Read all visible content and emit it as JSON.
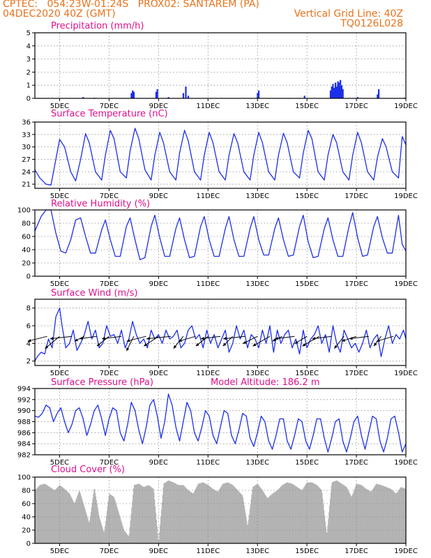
{
  "header": {
    "line1_left": "CPTEC:   054:23W-01:24S   PROX02: SANTAREM (PA)",
    "line2_left": "04DEC2020 40Z (GMT)",
    "line2_right": "Vertical Grid Line: 40Z",
    "line3_right": "TQ0126L028",
    "color": "#e8721b"
  },
  "x_axis": {
    "tick_labels": [
      "5DEC",
      "7DEC",
      "9DEC",
      "11DEC",
      "13DEC",
      "15DEC",
      "17DEC",
      "19DEC"
    ],
    "tick_days": [
      5,
      7,
      9,
      11,
      13,
      15,
      17,
      19
    ],
    "range_days": [
      4,
      19
    ]
  },
  "chart_data": [
    {
      "type": "bar",
      "title": "Precipitation (mm/h)",
      "ylim": [
        0,
        5
      ],
      "yticks": [
        0,
        1,
        2,
        3,
        4,
        5
      ],
      "grid": true,
      "color": "#1c2ee8",
      "x_days": [
        5.95,
        6.4,
        7.9,
        7.95,
        8.0,
        8.9,
        8.95,
        9.4,
        10.0,
        10.1,
        10.2,
        13.0,
        13.05,
        14.9,
        15.95,
        16.0,
        16.05,
        16.1,
        16.15,
        16.2,
        16.25,
        16.3,
        16.35,
        16.4,
        16.45,
        17.05,
        17.85,
        17.9,
        18.95
      ],
      "values": [
        0.1,
        0.05,
        0.4,
        0.6,
        0.5,
        0.5,
        0.7,
        0.1,
        0.4,
        0.9,
        0.2,
        0.4,
        0.6,
        0.2,
        0.6,
        0.9,
        1.1,
        0.8,
        1.2,
        0.9,
        1.3,
        1.2,
        1.4,
        1.0,
        0.7,
        0.1,
        0.3,
        0.7,
        0.05
      ]
    },
    {
      "type": "line",
      "title": "Surface Temperature (nC)",
      "ylim": [
        20,
        36
      ],
      "yticks": [
        21,
        24,
        27,
        30,
        33,
        36
      ],
      "grid": true,
      "color": "#1c2ee8",
      "x_days": [
        4.0,
        4.2,
        4.45,
        4.65,
        4.85,
        5.0,
        5.2,
        5.45,
        5.65,
        5.85,
        6.05,
        6.2,
        6.45,
        6.7,
        6.85,
        7.05,
        7.2,
        7.45,
        7.7,
        7.85,
        8.05,
        8.2,
        8.45,
        8.7,
        8.85,
        9.05,
        9.2,
        9.45,
        9.7,
        9.85,
        10.05,
        10.2,
        10.45,
        10.7,
        10.85,
        11.05,
        11.2,
        11.45,
        11.7,
        11.85,
        12.05,
        12.2,
        12.45,
        12.7,
        12.85,
        13.05,
        13.2,
        13.45,
        13.7,
        13.85,
        14.05,
        14.2,
        14.45,
        14.7,
        14.85,
        15.05,
        15.2,
        15.45,
        15.7,
        15.85,
        16.05,
        16.2,
        16.45,
        16.7,
        16.85,
        17.05,
        17.2,
        17.45,
        17.7,
        17.85,
        18.05,
        18.2,
        18.45,
        18.7,
        18.85,
        19.0
      ],
      "values": [
        24.5,
        22.5,
        21.0,
        20.8,
        27.0,
        31.8,
        30.0,
        24.0,
        21.8,
        27.0,
        33.2,
        31.0,
        24.0,
        22.0,
        28.0,
        34.0,
        32.0,
        24.0,
        22.5,
        29.0,
        34.5,
        32.0,
        24.5,
        22.0,
        28.0,
        33.5,
        31.0,
        24.0,
        22.0,
        28.5,
        34.0,
        31.5,
        24.0,
        22.0,
        28.0,
        33.5,
        31.0,
        24.0,
        22.0,
        28.0,
        33.2,
        31.0,
        24.0,
        22.0,
        28.0,
        33.5,
        31.0,
        24.0,
        22.0,
        28.0,
        33.3,
        31.0,
        24.0,
        22.5,
        28.5,
        34.0,
        32.0,
        24.0,
        22.0,
        28.0,
        33.0,
        31.0,
        24.0,
        22.0,
        28.0,
        33.5,
        31.0,
        24.0,
        22.0,
        27.5,
        32.0,
        30.0,
        24.0,
        22.5,
        32.5,
        30.5
      ]
    },
    {
      "type": "line",
      "title": "Relative Humidity (%)",
      "ylim": [
        0,
        100
      ],
      "yticks": [
        0,
        20,
        40,
        60,
        80,
        100
      ],
      "grid": true,
      "color": "#1c2ee8",
      "x_days": [
        4.0,
        4.25,
        4.45,
        4.65,
        4.85,
        5.05,
        5.25,
        5.45,
        5.65,
        5.85,
        6.05,
        6.25,
        6.45,
        6.7,
        6.85,
        7.05,
        7.25,
        7.45,
        7.7,
        7.85,
        8.05,
        8.25,
        8.45,
        8.7,
        8.85,
        9.05,
        9.25,
        9.45,
        9.7,
        9.85,
        10.05,
        10.25,
        10.45,
        10.7,
        10.85,
        11.05,
        11.25,
        11.45,
        11.7,
        11.85,
        12.05,
        12.25,
        12.45,
        12.7,
        12.85,
        13.05,
        13.25,
        13.45,
        13.7,
        13.85,
        14.05,
        14.25,
        14.45,
        14.7,
        14.85,
        15.05,
        15.25,
        15.45,
        15.7,
        15.85,
        16.05,
        16.25,
        16.45,
        16.7,
        16.85,
        17.05,
        17.25,
        17.45,
        17.7,
        17.85,
        18.05,
        18.25,
        18.45,
        18.7,
        18.85,
        19.0
      ],
      "values": [
        68,
        90,
        100,
        100,
        65,
        38,
        35,
        55,
        85,
        88,
        60,
        35,
        35,
        70,
        85,
        55,
        30,
        30,
        75,
        88,
        55,
        25,
        28,
        75,
        92,
        58,
        30,
        30,
        72,
        88,
        55,
        28,
        30,
        75,
        90,
        55,
        30,
        30,
        72,
        90,
        55,
        30,
        30,
        72,
        90,
        55,
        32,
        32,
        72,
        88,
        55,
        30,
        32,
        75,
        92,
        52,
        28,
        30,
        72,
        88,
        55,
        30,
        30,
        75,
        96,
        58,
        30,
        32,
        75,
        90,
        58,
        35,
        35,
        92,
        48,
        38
      ]
    },
    {
      "type": "line",
      "title": "Surface Wind (m/s)",
      "ylim": [
        1.5,
        9
      ],
      "yticks": [
        2,
        4,
        6,
        8
      ],
      "grid": true,
      "color": "#1c2ee8",
      "x_days": [
        4.0,
        4.1,
        4.25,
        4.4,
        4.55,
        4.7,
        4.85,
        5.0,
        5.1,
        5.25,
        5.4,
        5.55,
        5.7,
        5.85,
        6.0,
        6.15,
        6.3,
        6.45,
        6.6,
        6.75,
        6.9,
        7.05,
        7.2,
        7.35,
        7.5,
        7.65,
        7.8,
        7.95,
        8.1,
        8.25,
        8.4,
        8.55,
        8.7,
        8.85,
        9.0,
        9.15,
        9.3,
        9.45,
        9.6,
        9.75,
        9.9,
        10.05,
        10.2,
        10.35,
        10.5,
        10.65,
        10.8,
        10.95,
        11.1,
        11.25,
        11.4,
        11.55,
        11.7,
        11.85,
        12.0,
        12.15,
        12.3,
        12.45,
        12.6,
        12.75,
        12.9,
        13.05,
        13.2,
        13.35,
        13.5,
        13.65,
        13.8,
        13.95,
        14.1,
        14.25,
        14.4,
        14.55,
        14.7,
        14.85,
        15.0,
        15.15,
        15.3,
        15.45,
        15.6,
        15.75,
        15.9,
        16.05,
        16.2,
        16.35,
        16.5,
        16.65,
        16.8,
        16.95,
        17.1,
        17.25,
        17.4,
        17.55,
        17.7,
        17.85,
        18.0,
        18.15,
        18.3,
        18.45,
        18.6,
        18.75,
        18.9,
        19.0
      ],
      "values": [
        2.0,
        2.5,
        3.0,
        2.8,
        4.5,
        3.5,
        7.0,
        8.0,
        6.0,
        3.5,
        4.0,
        5.5,
        3.2,
        4.0,
        5.0,
        6.5,
        4.5,
        5.5,
        3.5,
        4.0,
        6.0,
        4.8,
        5.0,
        4.0,
        5.5,
        3.5,
        4.5,
        6.5,
        5.0,
        4.0,
        4.5,
        3.5,
        5.5,
        4.5,
        5.0,
        4.0,
        5.5,
        4.5,
        4.8,
        5.5,
        3.5,
        4.0,
        5.5,
        6.0,
        4.5,
        5.0,
        3.5,
        5.5,
        4.0,
        5.0,
        3.5,
        4.5,
        5.5,
        3.0,
        4.0,
        6.0,
        4.5,
        5.5,
        3.5,
        5.0,
        4.5,
        3.5,
        5.5,
        4.0,
        6.0,
        3.0,
        5.5,
        4.0,
        5.0,
        5.5,
        3.5,
        4.5,
        2.8,
        5.5,
        3.5,
        4.5,
        5.0,
        6.0,
        4.0,
        5.0,
        3.0,
        6.0,
        4.0,
        3.0,
        5.5,
        4.5,
        3.5,
        4.0,
        3.0,
        4.0,
        5.5,
        3.5,
        4.5,
        5.0,
        2.5,
        4.5,
        6.0,
        4.0,
        5.0,
        4.5,
        5.5,
        4.5
      ],
      "arrow_days": [
        4.5,
        5.0,
        5.5,
        6.0,
        6.5,
        7.0,
        7.5,
        8.0,
        8.5,
        9.0,
        9.5,
        10.0,
        10.5,
        11.0,
        11.5,
        12.0,
        12.5,
        13.0,
        13.5,
        14.0,
        14.5,
        15.0,
        15.5,
        16.0,
        16.5,
        17.0,
        17.5,
        18.0,
        18.5
      ],
      "arrow_u": [
        -4.0,
        -3.0,
        -4.5,
        -2.0,
        -3.5,
        -2.5,
        -4.0,
        -1.5,
        -4.0,
        -3.0,
        -5.0,
        -2.0,
        -3.5,
        -2.5,
        -4.0,
        -2.0,
        -4.5,
        -3.0,
        -3.5,
        -2.0,
        -4.0,
        -2.5,
        -3.5,
        -4.0,
        -2.0,
        -3.0,
        -4.0,
        -1.5,
        -3.5
      ],
      "arrow_v": [
        -1.0,
        -2.5,
        -0.5,
        -1.0,
        -0.5,
        -2.0,
        -0.5,
        -3.0,
        -1.0,
        -2.0,
        -0.5,
        -2.5,
        -1.0,
        -2.0,
        -0.5,
        -2.0,
        -0.5,
        -1.5,
        -2.0,
        -1.0,
        -0.5,
        -1.5,
        -2.0,
        -0.5,
        -2.5,
        -1.0,
        -0.5,
        -2.0,
        -1.0
      ]
    },
    {
      "type": "line",
      "title": "Surface Pressure (hPa)",
      "annotation": "Model Altitude: 186.2 m",
      "ylim": [
        982,
        994
      ],
      "yticks": [
        982,
        984,
        986,
        988,
        990,
        992,
        994
      ],
      "grid": true,
      "color": "#1c2ee8",
      "x_days": [
        4.0,
        4.15,
        4.3,
        4.45,
        4.6,
        4.75,
        4.9,
        5.05,
        5.2,
        5.35,
        5.5,
        5.65,
        5.8,
        5.95,
        6.1,
        6.25,
        6.4,
        6.55,
        6.7,
        6.85,
        7.0,
        7.15,
        7.3,
        7.45,
        7.6,
        7.75,
        7.9,
        8.05,
        8.2,
        8.35,
        8.5,
        8.65,
        8.8,
        8.95,
        9.1,
        9.25,
        9.4,
        9.55,
        9.7,
        9.85,
        10.0,
        10.15,
        10.3,
        10.45,
        10.6,
        10.75,
        10.9,
        11.05,
        11.2,
        11.35,
        11.5,
        11.65,
        11.8,
        11.95,
        12.1,
        12.25,
        12.4,
        12.55,
        12.7,
        12.85,
        13.0,
        13.15,
        13.3,
        13.45,
        13.6,
        13.75,
        13.9,
        14.05,
        14.2,
        14.35,
        14.5,
        14.65,
        14.8,
        14.95,
        15.1,
        15.25,
        15.4,
        15.55,
        15.7,
        15.85,
        16.0,
        16.15,
        16.3,
        16.45,
        16.6,
        16.75,
        16.9,
        17.05,
        17.2,
        17.35,
        17.5,
        17.65,
        17.8,
        17.95,
        18.1,
        18.25,
        18.4,
        18.55,
        18.7,
        18.85,
        19.0
      ],
      "values": [
        989.0,
        988.8,
        989.5,
        991.0,
        990.5,
        988.0,
        989.5,
        990.5,
        988.0,
        986.0,
        987.5,
        990.0,
        990.5,
        988.5,
        985.5,
        987.5,
        990.0,
        991.0,
        988.5,
        985.5,
        988.5,
        990.5,
        990.0,
        986.0,
        984.5,
        987.5,
        991.5,
        990.0,
        986.5,
        984.0,
        987.0,
        991.0,
        992.0,
        989.0,
        985.0,
        988.0,
        993.0,
        991.0,
        987.0,
        984.5,
        988.0,
        991.5,
        990.0,
        986.0,
        984.5,
        987.0,
        990.0,
        989.0,
        985.5,
        984.0,
        987.0,
        990.0,
        989.5,
        985.5,
        984.0,
        986.5,
        989.5,
        989.0,
        985.0,
        983.5,
        986.0,
        989.0,
        988.0,
        984.5,
        983.0,
        985.5,
        988.5,
        988.5,
        984.5,
        983.0,
        985.5,
        988.5,
        988.0,
        984.5,
        983.0,
        985.5,
        988.5,
        988.5,
        985.0,
        982.5,
        985.0,
        988.0,
        988.5,
        984.5,
        982.5,
        985.0,
        988.0,
        989.0,
        985.5,
        983.0,
        986.0,
        989.0,
        988.5,
        984.5,
        982.5,
        985.0,
        988.5,
        989.0,
        986.0,
        982.5,
        984.0
      ]
    },
    {
      "type": "area",
      "title": "Cloud Cover (%)",
      "ylim": [
        0,
        100
      ],
      "yticks": [
        0,
        20,
        40,
        60,
        80,
        100
      ],
      "grid": true,
      "color": "#b3b3b3",
      "x_days": [
        4.0,
        4.2,
        4.4,
        4.6,
        4.8,
        5.0,
        5.2,
        5.4,
        5.6,
        5.8,
        6.0,
        6.2,
        6.4,
        6.6,
        6.8,
        7.0,
        7.2,
        7.4,
        7.6,
        7.8,
        8.0,
        8.2,
        8.4,
        8.6,
        8.8,
        9.0,
        9.2,
        9.4,
        9.6,
        9.8,
        10.0,
        10.2,
        10.4,
        10.6,
        10.8,
        11.0,
        11.2,
        11.4,
        11.6,
        11.8,
        12.0,
        12.2,
        12.4,
        12.6,
        12.8,
        13.0,
        13.2,
        13.4,
        13.6,
        13.8,
        14.0,
        14.2,
        14.4,
        14.6,
        14.8,
        15.0,
        15.2,
        15.4,
        15.6,
        15.8,
        16.0,
        16.2,
        16.4,
        16.6,
        16.8,
        17.0,
        17.2,
        17.4,
        17.6,
        17.8,
        18.0,
        18.2,
        18.4,
        18.6,
        18.8,
        19.0
      ],
      "values": [
        80,
        88,
        90,
        85,
        80,
        88,
        82,
        75,
        60,
        80,
        55,
        30,
        85,
        40,
        15,
        75,
        70,
        45,
        20,
        10,
        88,
        90,
        85,
        88,
        82,
        0,
        90,
        95,
        92,
        88,
        88,
        80,
        75,
        90,
        92,
        88,
        82,
        78,
        90,
        92,
        88,
        80,
        72,
        25,
        85,
        90,
        80,
        68,
        75,
        80,
        88,
        92,
        90,
        85,
        80,
        92,
        92,
        88,
        80,
        12,
        92,
        95,
        90,
        85,
        70,
        90,
        88,
        82,
        78,
        90,
        88,
        85,
        82,
        75,
        85,
        82
      ]
    }
  ]
}
